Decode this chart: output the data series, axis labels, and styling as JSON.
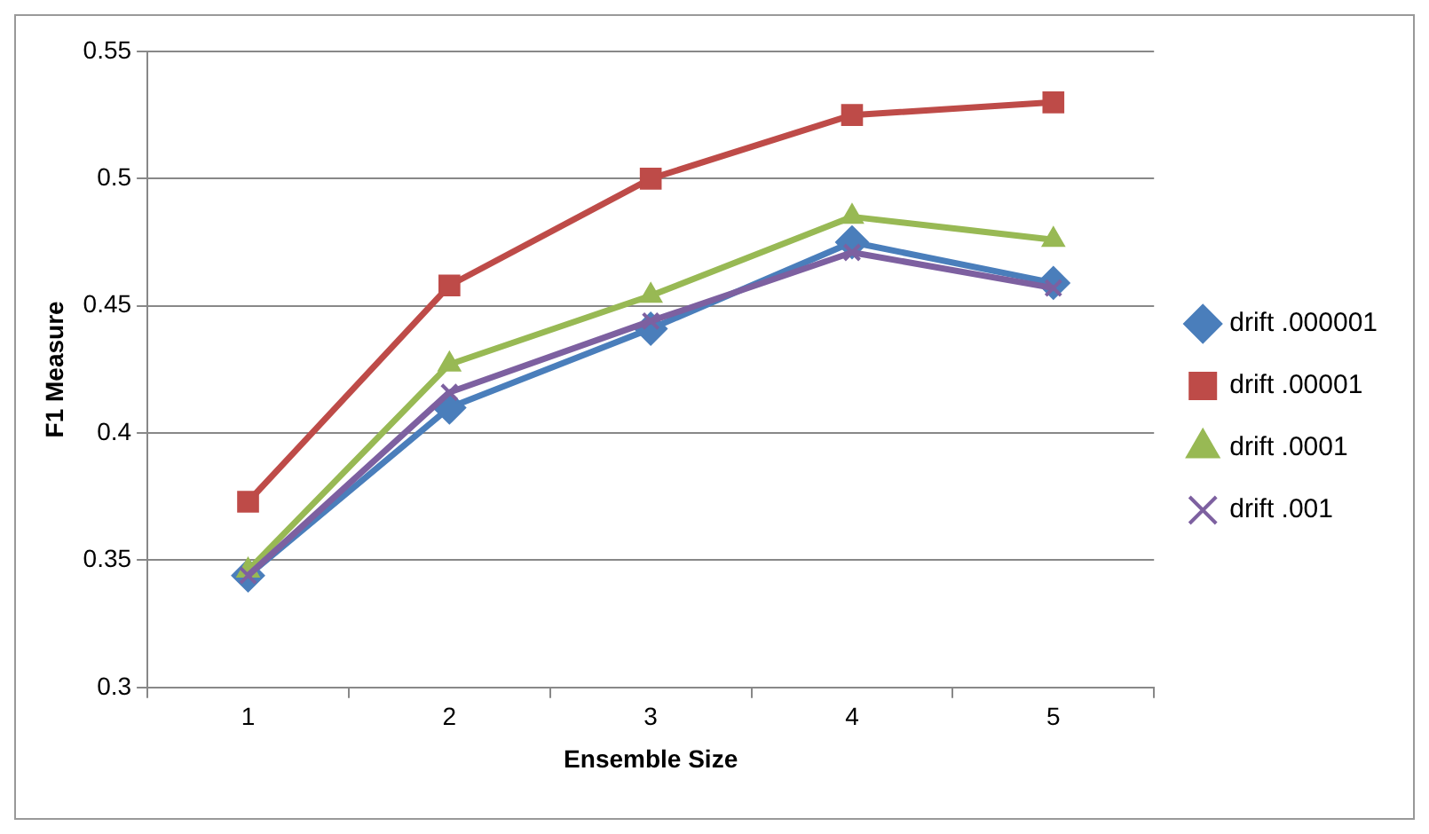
{
  "chart_data": {
    "type": "line",
    "xlabel": "Ensemble Size",
    "ylabel": "F1 Measure",
    "categories": [
      "1",
      "2",
      "3",
      "4",
      "5"
    ],
    "ylim": [
      0.3,
      0.55
    ],
    "yticks": [
      0.3,
      0.35,
      0.4,
      0.45,
      0.5,
      0.55
    ],
    "grid": "y",
    "legend": "right",
    "line_style": "solid",
    "series": [
      {
        "name": "drift .000001",
        "color": "#4a7ebb",
        "marker": "diamond",
        "values": [
          0.344,
          0.41,
          0.441,
          0.475,
          0.459
        ]
      },
      {
        "name": "drift .00001",
        "color": "#be4b48",
        "marker": "square",
        "values": [
          0.373,
          0.458,
          0.5,
          0.525,
          0.53
        ]
      },
      {
        "name": "drift .0001",
        "color": "#98b954",
        "marker": "triangle",
        "values": [
          0.346,
          0.427,
          0.454,
          0.485,
          0.476
        ]
      },
      {
        "name": "drift .001",
        "color": "#7d60a0",
        "marker": "cross",
        "values": [
          0.344,
          0.416,
          0.444,
          0.471,
          0.457
        ]
      }
    ]
  }
}
